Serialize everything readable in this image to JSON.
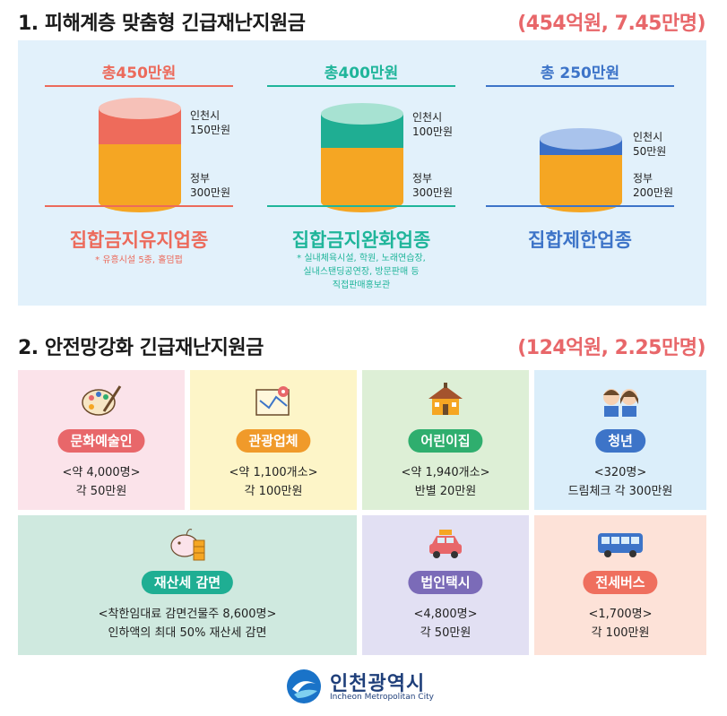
{
  "section1": {
    "title": "1. 피해계층 맞춤형 긴급재난지원금",
    "total": "(454억원, 7.45만명)",
    "columns": [
      {
        "total": "총450만원",
        "incheon_label": "인천시",
        "incheon_amount": "150만원",
        "gov_label": "정부",
        "gov_amount": "300만원",
        "category": "집합금지유지업종",
        "note_lines": [
          "* 유흥시설 5종, 홀덤펍"
        ],
        "accent": "#ec6a5b",
        "top_color": "#ee6b5b"
      },
      {
        "total": "총400만원",
        "incheon_label": "인천시",
        "incheon_amount": "100만원",
        "gov_label": "정부",
        "gov_amount": "300만원",
        "category": "집합금지완화업종",
        "note_lines": [
          "* 실내체육시설, 학원, 노래연습장,",
          "실내스탠딩공연장, 방문판매 등",
          "직접판매홍보관"
        ],
        "accent": "#1fb59a",
        "top_color": "#1fae93"
      },
      {
        "total": "총 250만원",
        "incheon_label": "인천시",
        "incheon_amount": "50만원",
        "gov_label": "정부",
        "gov_amount": "200만원",
        "category": "집합제한업종",
        "note_lines": [],
        "accent": "#3d74c8",
        "top_color": "#3b6fc6"
      }
    ]
  },
  "section2": {
    "title": "2. 안전망강화 긴급재난지원금",
    "total": "(124억원, 2.25만명)",
    "cards": [
      {
        "label": "문화예술인",
        "line1": "<약 4,000명>",
        "line2": "각 50만원",
        "bg": "#fbe3ea",
        "pill": "#e8676a",
        "icon": "palette-icon"
      },
      {
        "label": "관광업체",
        "line1": "<약 1,100개소>",
        "line2": "각 100만원",
        "bg": "#fdf5c8",
        "pill": "#f09a2a",
        "icon": "map-icon"
      },
      {
        "label": "어린이집",
        "line1": "<약 1,940개소>",
        "line2": "반별 20만원",
        "bg": "#ddefd6",
        "pill": "#2fae6e",
        "icon": "school-icon"
      },
      {
        "label": "청년",
        "line1": "<320명>",
        "line2": "드림체크 각 300만원",
        "bg": "#dbeefa",
        "pill": "#3d74c8",
        "icon": "youth-icon"
      },
      {
        "label": "재산세 감면",
        "line1": "<착한임대료 감면건물주 8,600명>",
        "line2": "인하액의 최대 50% 재산세 감면",
        "bg": "#cfe9df",
        "pill": "#1fae93",
        "icon": "piggybank-icon"
      },
      {
        "label": "법인택시",
        "line1": "<4,800명>",
        "line2": "각 50만원",
        "bg": "#e2e0f3",
        "pill": "#7b6bb8",
        "icon": "taxi-icon"
      },
      {
        "label": "전세버스",
        "line1": "<1,700명>",
        "line2": "각 100만원",
        "bg": "#fde2d8",
        "pill": "#ef6f5e",
        "icon": "bus-icon"
      }
    ]
  },
  "footer": {
    "logo_name": "인천광역시",
    "logo_sub": "Incheon Metropolitan City"
  }
}
